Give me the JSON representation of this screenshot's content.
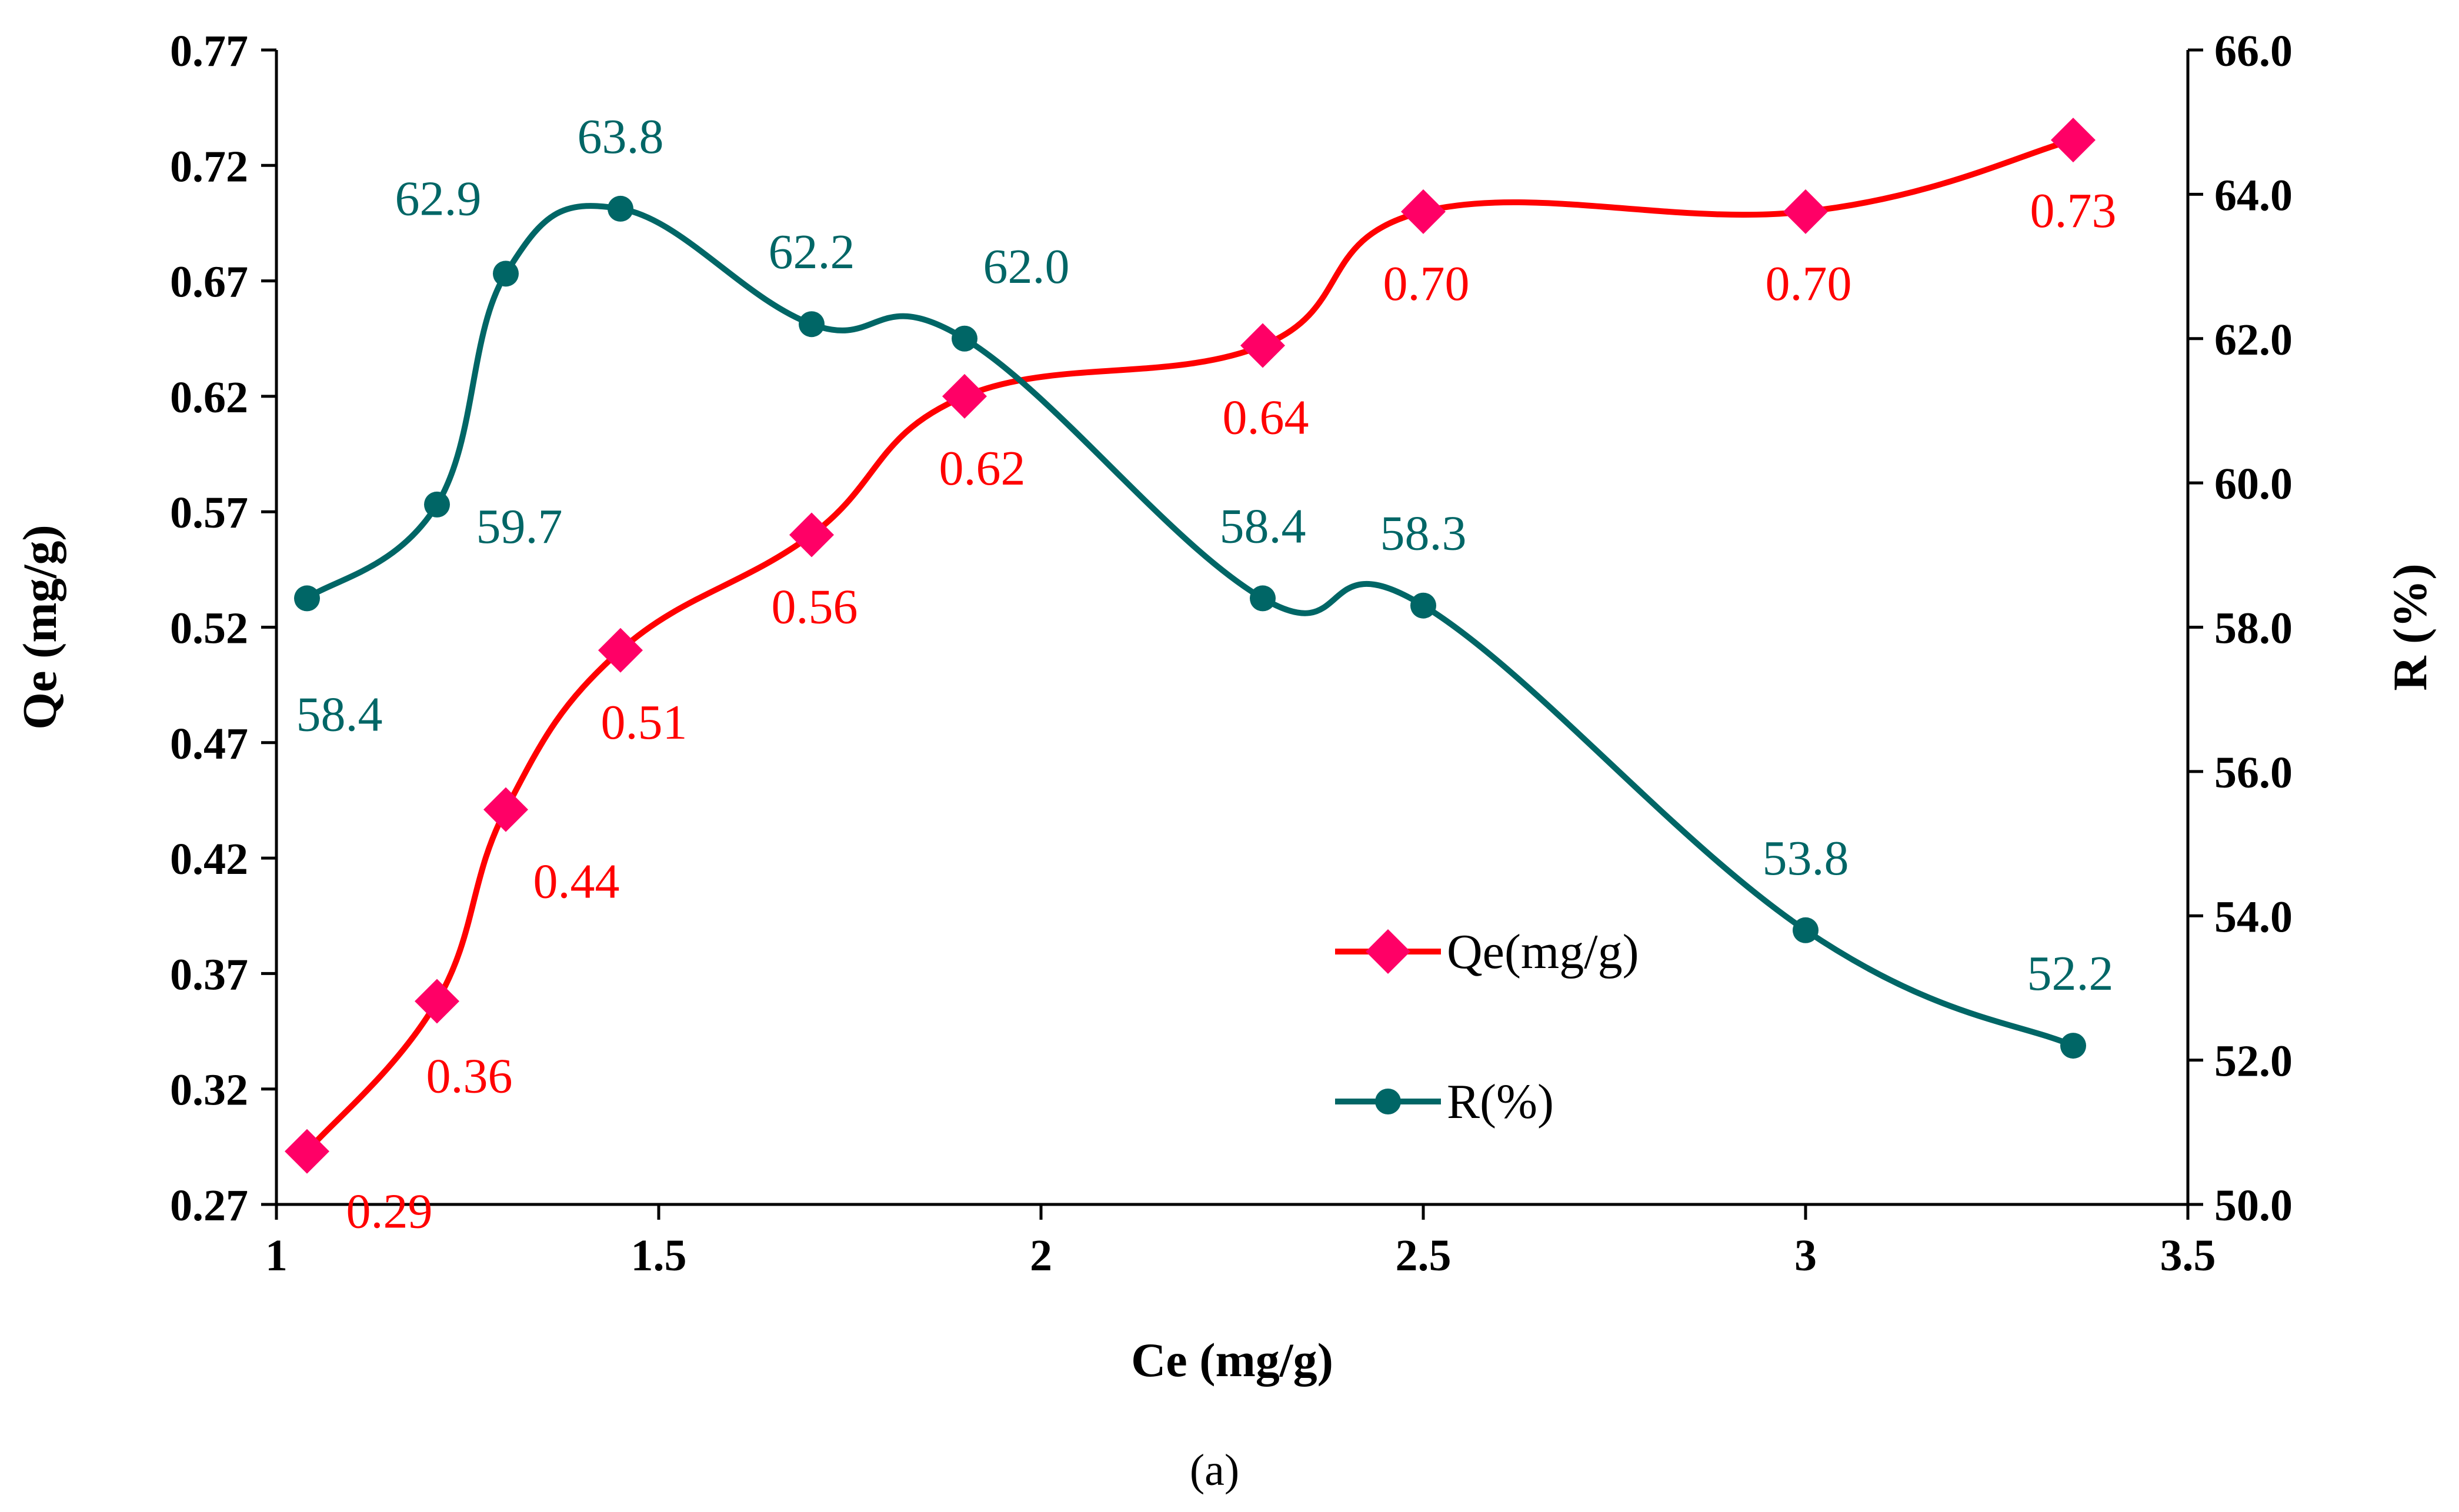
{
  "chart_data": {
    "type": "line",
    "caption": "(a)",
    "xlabel": "Ce (mg/g)",
    "ylabel": "Qe (mg/g)",
    "y2label": "R (%)",
    "xlim": [
      1,
      3.5
    ],
    "ylim": [
      0.27,
      0.77
    ],
    "y2lim": [
      50.0,
      66.0
    ],
    "x_ticks": [
      "1",
      "1.5",
      "2",
      "2.5",
      "3",
      "3.5"
    ],
    "y_ticks": [
      "0.27",
      "0.32",
      "0.37",
      "0.42",
      "0.47",
      "0.52",
      "0.57",
      "0.62",
      "0.67",
      "0.72",
      "0.77"
    ],
    "y2_ticks": [
      "50.0",
      "52.0",
      "54.0",
      "56.0",
      "58.0",
      "60.0",
      "62.0",
      "64.0",
      "66.0"
    ],
    "grid": false,
    "legend_position": "center-right",
    "series": [
      {
        "name": "Qe(mg/g)",
        "axis": "left",
        "color": "#FF0000",
        "marker_color": "#FF0066",
        "marker": "diamond",
        "x": [
          1.04,
          1.21,
          1.3,
          1.45,
          1.7,
          1.9,
          2.29,
          2.5,
          3.0,
          3.35
        ],
        "y": [
          0.293,
          0.358,
          0.441,
          0.51,
          0.56,
          0.62,
          0.642,
          0.7,
          0.7,
          0.731
        ],
        "labels": [
          "0.29",
          "0.36",
          "0.44",
          "0.51",
          "0.56",
          "0.62",
          "0.64",
          "0.70",
          "0.70",
          "0.73"
        ]
      },
      {
        "name": "R(%)",
        "axis": "right",
        "color": "#006666",
        "marker_color": "#006666",
        "marker": "circle",
        "x": [
          1.04,
          1.21,
          1.3,
          1.45,
          1.7,
          1.9,
          2.29,
          2.5,
          3.0,
          3.35
        ],
        "y": [
          58.4,
          59.7,
          62.9,
          63.8,
          62.2,
          62.0,
          58.4,
          58.3,
          53.8,
          52.2
        ],
        "labels": [
          "58.4",
          "59.7",
          "62.9",
          "63.8",
          "62.2",
          "62.0",
          "58.4",
          "58.3",
          "53.8",
          "52.2"
        ]
      }
    ]
  }
}
